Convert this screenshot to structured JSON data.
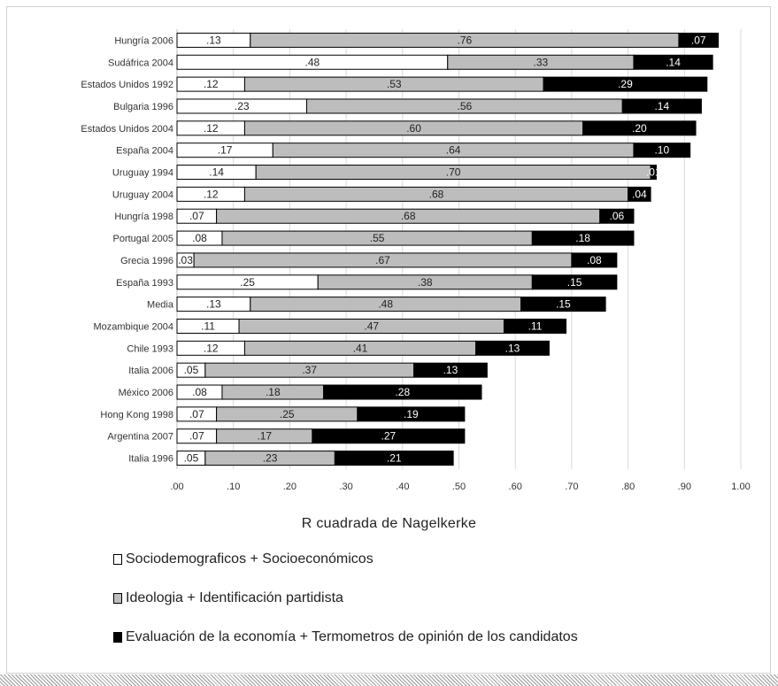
{
  "chart_data": {
    "type": "bar",
    "orientation": "horizontal",
    "stacked": true,
    "categories": [
      "Hungría 2006",
      "Sudáfrica 2004",
      "Estados Unidos 1992",
      "Bulgaria 1996",
      "Estados Unidos 2004",
      "España 2004",
      "Uruguay 1994",
      "Uruguay 2004",
      "Hungría 1998",
      "Portugal 2005",
      "Grecia 1996",
      "España 1993",
      "Media",
      "Mozambique 2004",
      "Chile 1993",
      "Italia 2006",
      "México 2006",
      "Hong Kong 1998",
      "Argentina 2007",
      "Italia 1996"
    ],
    "series": [
      {
        "name": "Sociodemograficos + Socioeconómicos",
        "color": "#ffffff",
        "values": [
          0.13,
          0.48,
          0.12,
          0.23,
          0.12,
          0.17,
          0.14,
          0.12,
          0.07,
          0.08,
          0.03,
          0.25,
          0.13,
          0.11,
          0.12,
          0.05,
          0.08,
          0.07,
          0.07,
          0.05
        ],
        "labels": [
          ".13",
          ".48",
          ".12",
          ".23",
          ".12",
          ".17",
          ".14",
          ".12",
          ".07",
          ".08",
          ".03",
          ".25",
          ".13",
          ".11",
          ".12",
          ".05",
          ".08",
          ".07",
          ".07",
          ".05"
        ]
      },
      {
        "name": "Ideologia + Identificación partidista",
        "color": "#bdbdbd",
        "values": [
          0.76,
          0.33,
          0.53,
          0.56,
          0.6,
          0.64,
          0.7,
          0.68,
          0.68,
          0.55,
          0.67,
          0.38,
          0.48,
          0.47,
          0.41,
          0.37,
          0.18,
          0.25,
          0.17,
          0.23
        ],
        "labels": [
          ".76",
          ".33",
          ".53",
          ".56",
          ".60",
          ".64",
          ".70",
          ".68",
          ".68",
          ".55",
          ".67",
          ".38",
          ".48",
          ".47",
          ".41",
          ".37",
          ".18",
          ".25",
          ".17",
          ".23"
        ]
      },
      {
        "name": "Evaluación de la economía + Termometros de opinión de los candidatos",
        "color": "#000000",
        "values": [
          0.07,
          0.14,
          0.29,
          0.14,
          0.2,
          0.1,
          0.01,
          0.04,
          0.06,
          0.18,
          0.08,
          0.15,
          0.15,
          0.11,
          0.13,
          0.13,
          0.28,
          0.19,
          0.27,
          0.21
        ],
        "labels": [
          ".07",
          ".14",
          ".29",
          ".14",
          ".20",
          ".10",
          ".01",
          ".04",
          ".06",
          ".18",
          ".08",
          ".15",
          ".15",
          ".11",
          ".13",
          ".13",
          ".28",
          ".19",
          ".27",
          ".21"
        ]
      }
    ],
    "xlim": [
      0,
      1.0
    ],
    "xticks": [
      ".00",
      ".10",
      ".20",
      ".30",
      ".40",
      ".50",
      ".60",
      ".70",
      ".80",
      ".90",
      "1.00"
    ],
    "xlabel": "R cuadrada de Nagelkerke",
    "grid": "vertical",
    "legend_position": "bottom-left"
  }
}
